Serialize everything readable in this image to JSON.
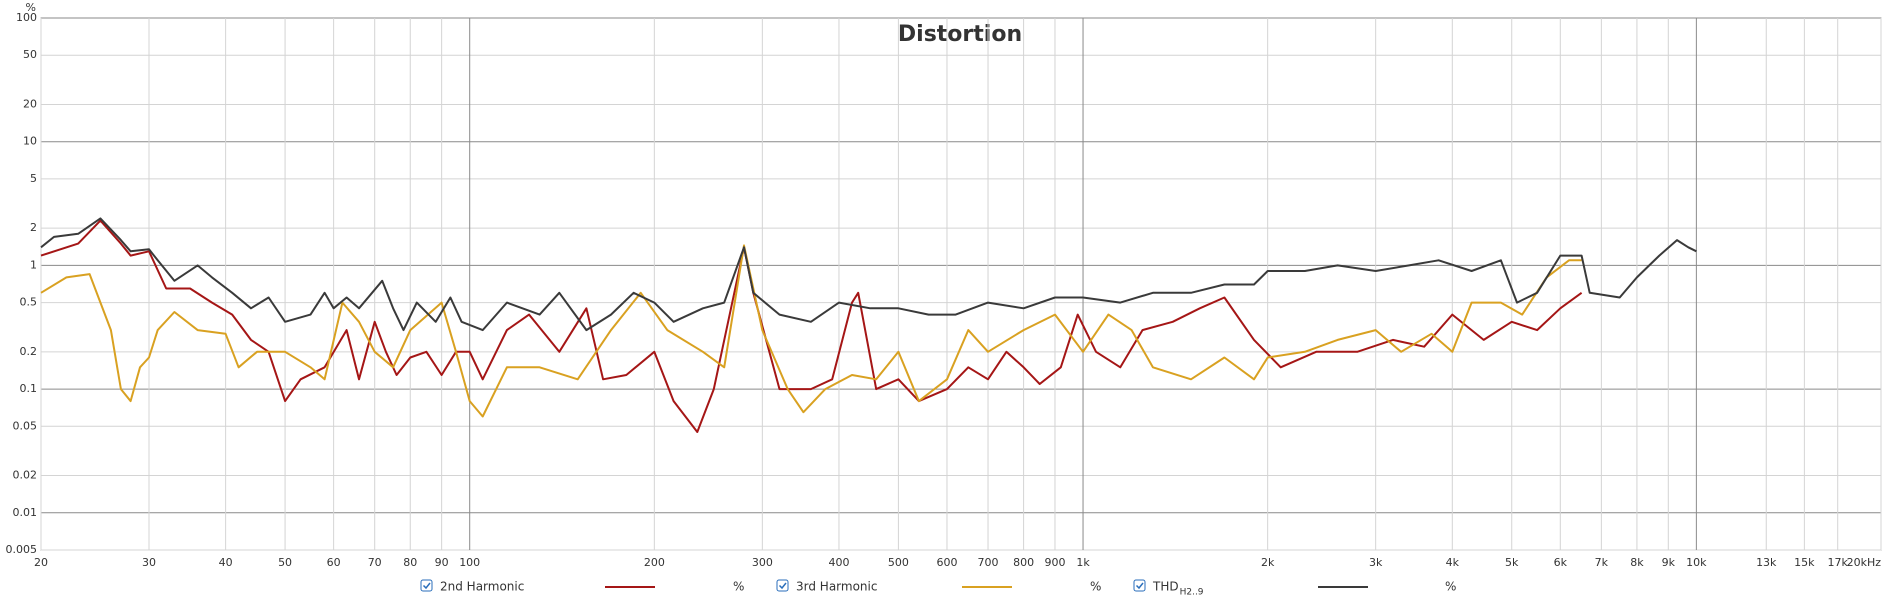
{
  "chart_data": {
    "type": "line",
    "title": "Distortion",
    "ylabel": "%",
    "xscale": "log",
    "yscale": "log",
    "grid": true,
    "xlim": [
      20,
      20000
    ],
    "ylim": [
      0.005,
      100
    ],
    "xticks": [
      20,
      30,
      40,
      50,
      60,
      70,
      80,
      90,
      100,
      200,
      300,
      400,
      500,
      600,
      700,
      800,
      900,
      {
        "value": 1000,
        "label": "1k"
      },
      {
        "value": 2000,
        "label": "2k"
      },
      {
        "value": 3000,
        "label": "3k"
      },
      {
        "value": 4000,
        "label": "4k"
      },
      {
        "value": 5000,
        "label": "5k"
      },
      {
        "value": 6000,
        "label": "6k"
      },
      {
        "value": 7000,
        "label": "7k"
      },
      {
        "value": 8000,
        "label": "8k"
      },
      {
        "value": 9000,
        "label": "9k"
      },
      {
        "value": 10000,
        "label": "10k"
      },
      {
        "value": 13000,
        "label": "13k"
      },
      {
        "value": 15000,
        "label": "15k"
      },
      {
        "value": 17000,
        "label": "17k"
      },
      {
        "value": 20000,
        "label": "20kHz"
      }
    ],
    "yticks": [
      0.005,
      0.01,
      0.02,
      0.05,
      0.1,
      0.2,
      0.5,
      1,
      2,
      5,
      10,
      20,
      50,
      100
    ],
    "series": [
      {
        "name": "2nd Harmonic",
        "unit": "%",
        "color": "#a51616",
        "x": [
          20,
          23,
          25,
          27,
          28,
          30,
          32,
          35,
          38,
          41,
          44,
          47,
          50,
          53,
          58,
          63,
          66,
          70,
          73,
          76,
          80,
          85,
          90,
          95,
          100,
          105,
          115,
          125,
          140,
          155,
          165,
          180,
          200,
          215,
          235,
          250,
          270,
          280,
          290,
          320,
          360,
          390,
          420,
          430,
          460,
          500,
          540,
          600,
          650,
          700,
          750,
          800,
          850,
          920,
          980,
          1050,
          1150,
          1250,
          1400,
          1550,
          1700,
          1900,
          2100,
          2400,
          2800,
          3200,
          3600,
          4000,
          4500,
          5000,
          5500,
          6000,
          6500
        ],
        "values": [
          1.2,
          1.5,
          2.3,
          1.5,
          1.2,
          1.3,
          0.65,
          0.65,
          0.5,
          0.4,
          0.25,
          0.2,
          0.08,
          0.12,
          0.15,
          0.3,
          0.12,
          0.35,
          0.2,
          0.13,
          0.18,
          0.2,
          0.13,
          0.2,
          0.2,
          0.12,
          0.3,
          0.4,
          0.2,
          0.45,
          0.12,
          0.13,
          0.2,
          0.08,
          0.045,
          0.1,
          0.6,
          1.4,
          0.6,
          0.1,
          0.1,
          0.12,
          0.5,
          0.6,
          0.1,
          0.12,
          0.08,
          0.1,
          0.15,
          0.12,
          0.2,
          0.15,
          0.11,
          0.15,
          0.4,
          0.2,
          0.15,
          0.3,
          0.35,
          0.45,
          0.55,
          0.25,
          0.15,
          0.2,
          0.2,
          0.25,
          0.22,
          0.4,
          0.25,
          0.35,
          0.3,
          0.45,
          0.6
        ]
      },
      {
        "name": "3rd Harmonic",
        "unit": "%",
        "color": "#d9a121",
        "x": [
          20,
          22,
          24,
          26,
          27,
          28,
          29,
          30,
          31,
          33,
          36,
          40,
          42,
          45,
          50,
          55,
          58,
          62,
          66,
          70,
          75,
          80,
          90,
          95,
          100,
          105,
          115,
          130,
          150,
          170,
          190,
          210,
          240,
          260,
          280,
          300,
          330,
          350,
          380,
          420,
          460,
          500,
          540,
          600,
          650,
          700,
          800,
          900,
          1000,
          1100,
          1200,
          1300,
          1500,
          1700,
          1900,
          2000,
          2300,
          2600,
          3000,
          3300,
          3700,
          4000,
          4300,
          4800,
          5200,
          5700,
          6200,
          6500
        ],
        "values": [
          0.6,
          0.8,
          0.85,
          0.3,
          0.1,
          0.08,
          0.15,
          0.18,
          0.3,
          0.42,
          0.3,
          0.28,
          0.15,
          0.2,
          0.2,
          0.15,
          0.12,
          0.5,
          0.35,
          0.2,
          0.15,
          0.3,
          0.5,
          0.2,
          0.08,
          0.06,
          0.15,
          0.15,
          0.12,
          0.3,
          0.6,
          0.3,
          0.2,
          0.15,
          1.45,
          0.3,
          0.1,
          0.065,
          0.1,
          0.13,
          0.12,
          0.2,
          0.08,
          0.12,
          0.3,
          0.2,
          0.3,
          0.4,
          0.2,
          0.4,
          0.3,
          0.15,
          0.12,
          0.18,
          0.12,
          0.18,
          0.2,
          0.25,
          0.3,
          0.2,
          0.28,
          0.2,
          0.5,
          0.5,
          0.4,
          0.8,
          1.1,
          1.1
        ]
      },
      {
        "name": "THD",
        "name_sub": "H2..9",
        "unit": "%",
        "color": "#3a3a3a",
        "x": [
          20,
          21,
          23,
          25,
          27,
          28,
          30,
          31,
          33,
          36,
          38,
          41,
          44,
          47,
          50,
          55,
          58,
          60,
          63,
          66,
          72,
          75,
          78,
          82,
          88,
          93,
          97,
          105,
          115,
          130,
          140,
          155,
          170,
          185,
          200,
          215,
          240,
          260,
          280,
          290,
          320,
          360,
          400,
          450,
          500,
          560,
          620,
          700,
          800,
          900,
          1000,
          1150,
          1300,
          1500,
          1700,
          1900,
          2000,
          2300,
          2600,
          3000,
          3400,
          3800,
          4300,
          4800,
          5100,
          5500,
          6000,
          6500,
          6700,
          7500,
          8000,
          8700,
          9300,
          9700,
          10000
        ],
        "values": [
          1.4,
          1.7,
          1.8,
          2.4,
          1.6,
          1.3,
          1.35,
          1.1,
          0.75,
          1.0,
          0.8,
          0.6,
          0.45,
          0.55,
          0.35,
          0.4,
          0.6,
          0.45,
          0.55,
          0.45,
          0.75,
          0.45,
          0.3,
          0.5,
          0.35,
          0.55,
          0.35,
          0.3,
          0.5,
          0.4,
          0.6,
          0.3,
          0.4,
          0.6,
          0.5,
          0.35,
          0.45,
          0.5,
          1.4,
          0.6,
          0.4,
          0.35,
          0.5,
          0.45,
          0.45,
          0.4,
          0.4,
          0.5,
          0.45,
          0.55,
          0.55,
          0.5,
          0.6,
          0.6,
          0.7,
          0.7,
          0.9,
          0.9,
          1.0,
          0.9,
          1.0,
          1.1,
          0.9,
          1.1,
          0.5,
          0.6,
          1.2,
          1.2,
          0.6,
          0.55,
          0.8,
          1.2,
          1.6,
          1.4,
          1.3
        ]
      }
    ]
  }
}
